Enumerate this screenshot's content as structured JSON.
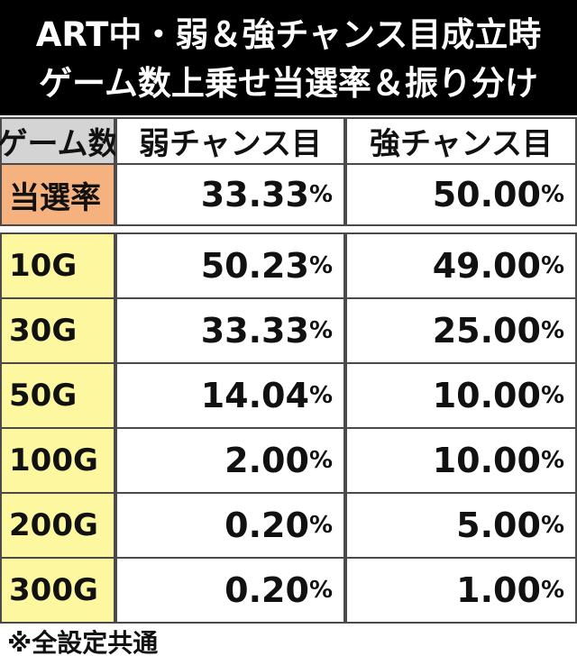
{
  "header": {
    "title_lines": [
      "ART中・弱＆強チャンス目成立時",
      "ゲーム数上乗せ当選率＆振り分け"
    ]
  },
  "table": {
    "columns": [
      "ゲーム数",
      "弱チャンス目",
      "強チャンス目"
    ],
    "summary": [
      "当選率",
      "33.33%",
      "50.00%"
    ],
    "rows": [
      [
        "10G",
        "50.23%",
        "49.00%"
      ],
      [
        "30G",
        "33.33%",
        "25.00%"
      ],
      [
        "50G",
        "14.04%",
        "10.00%"
      ],
      [
        "100G",
        "2.00%",
        "10.00%"
      ],
      [
        "200G",
        "0.20%",
        "5.00%"
      ],
      [
        "300G",
        "0.20%",
        "1.00%"
      ]
    ]
  },
  "footnote": "※全設定共通"
}
